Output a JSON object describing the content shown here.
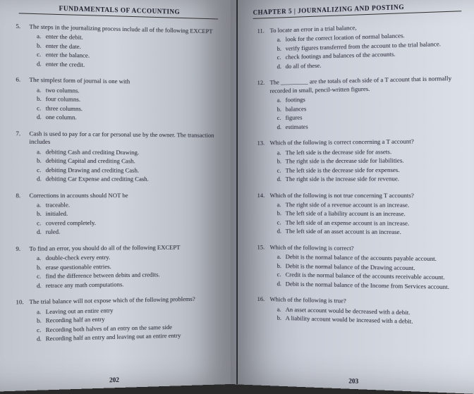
{
  "left": {
    "header": "FUNDAMENTALS OF ACCOUNTING",
    "pagenum": "202",
    "questions": [
      {
        "n": "5.",
        "stem": "The steps in the journalizing process include all of the following EXCEPT",
        "opts": [
          [
            "a.",
            "enter the debit."
          ],
          [
            "b.",
            "enter the date."
          ],
          [
            "c.",
            "enter the balance."
          ],
          [
            "d.",
            "enter the credit."
          ]
        ]
      },
      {
        "n": "6.",
        "stem": "The simplest form of journal is one with",
        "opts": [
          [
            "a.",
            "two columns."
          ],
          [
            "b.",
            "four columns."
          ],
          [
            "c.",
            "three columns."
          ],
          [
            "d.",
            "one column."
          ]
        ]
      },
      {
        "n": "7.",
        "stem": "Cash is used to pay for a car for personal use by the owner. The transaction includes",
        "opts": [
          [
            "a.",
            "debiting Cash and crediting Drawing."
          ],
          [
            "b.",
            "debiting Capital and crediting Cash."
          ],
          [
            "c.",
            "debiting Drawing and crediting Cash."
          ],
          [
            "d.",
            "debiting Car Expense and crediting Cash."
          ]
        ]
      },
      {
        "n": "8.",
        "stem": "Corrections in accounts should NOT be",
        "opts": [
          [
            "a.",
            "traceable."
          ],
          [
            "b.",
            "initialed."
          ],
          [
            "c.",
            "covered completely."
          ],
          [
            "d.",
            "ruled."
          ]
        ]
      },
      {
        "n": "9.",
        "stem": "To find an error, you should do all of the following EXCEPT",
        "opts": [
          [
            "a.",
            "double-check every entry."
          ],
          [
            "b.",
            "erase questionable entries."
          ],
          [
            "c.",
            "find the difference between debits and credits."
          ],
          [
            "d.",
            "retrace any math computations."
          ]
        ]
      },
      {
        "n": "10.",
        "stem": "The trial balance will not expose which of the following problems?",
        "opts": [
          [
            "a.",
            "Leaving out an entire entry"
          ],
          [
            "b.",
            "Recording half an entry"
          ],
          [
            "c.",
            "Recording both halves of an entry on the same side"
          ],
          [
            "d.",
            "Recording half an entry and leaving out an entire entry"
          ]
        ]
      }
    ]
  },
  "right": {
    "header": "CHAPTER 5 | JOURNALIZING AND POSTING",
    "pagenum": "203",
    "questions": [
      {
        "n": "11.",
        "stem": "To locate an error in a trial balance,",
        "opts": [
          [
            "a.",
            "look for the correct location of normal balances."
          ],
          [
            "b.",
            "verify figures transferred from the account to the trial balance."
          ],
          [
            "c.",
            "check footings and balances of the accounts."
          ],
          [
            "d.",
            "do all of these."
          ]
        ]
      },
      {
        "n": "12.",
        "stem": "The _________ are the totals of each side of a T account that is normally recorded in small, pencil-written figures.",
        "opts": [
          [
            "a.",
            "footings"
          ],
          [
            "b.",
            "balances"
          ],
          [
            "c.",
            "figures"
          ],
          [
            "d.",
            "estimates"
          ]
        ]
      },
      {
        "n": "13.",
        "stem": "Which of the following is correct concerning a T account?",
        "opts": [
          [
            "a.",
            "The left side is the decrease side for assets."
          ],
          [
            "b.",
            "The right side is the decrease side for liabilities."
          ],
          [
            "c.",
            "The left side is the decrease side for expenses."
          ],
          [
            "d.",
            "The right side is the increase side for revenue."
          ]
        ]
      },
      {
        "n": "14.",
        "stem": "Which of the following is not true concerning T accounts?",
        "opts": [
          [
            "a.",
            "The right side of a revenue account is an increase."
          ],
          [
            "b.",
            "The left side of a liability account is an increase."
          ],
          [
            "c.",
            "The left side of an expense account is an increase."
          ],
          [
            "d.",
            "The left side of an asset account is an increase."
          ]
        ]
      },
      {
        "n": "15.",
        "stem": "Which of the following is correct?",
        "opts": [
          [
            "a.",
            "Debit is the normal balance of the accounts payable account."
          ],
          [
            "b.",
            "Debit is the normal balance of the Drawing account."
          ],
          [
            "c.",
            "Credit is the normal balance of the accounts receivable account."
          ],
          [
            "d.",
            "Debit is the normal balance of the Income from Services account."
          ]
        ]
      },
      {
        "n": "16.",
        "stem": "Which of the following is true?",
        "opts": [
          [
            "a.",
            "An asset account would be decreased with a debit."
          ],
          [
            "b.",
            "A liability account would be increased with a debit."
          ]
        ]
      }
    ]
  }
}
